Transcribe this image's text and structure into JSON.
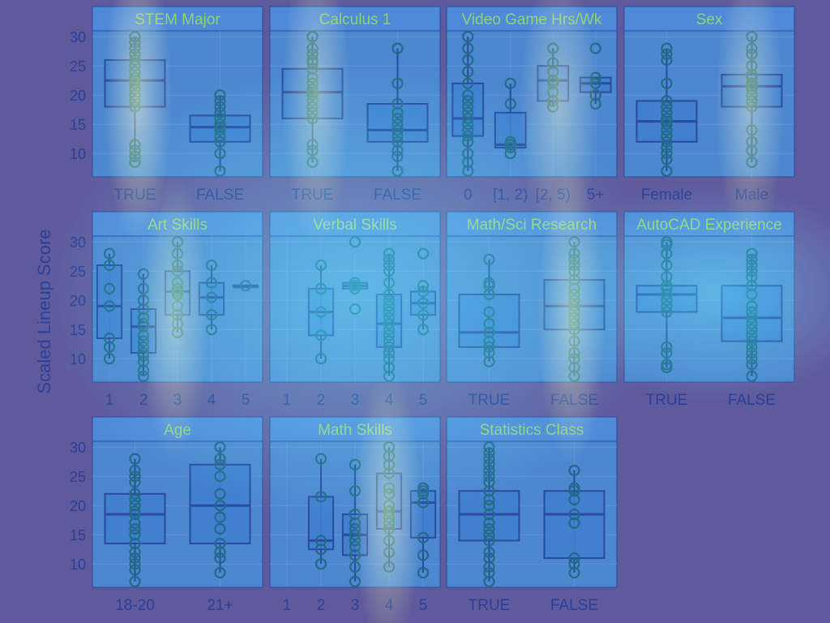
{
  "chart_data": {
    "type": "box",
    "ylabel": "Scaled Lineup Score",
    "ylim": [
      6,
      31
    ],
    "yticks": [
      10,
      15,
      20,
      25,
      30
    ],
    "grid": true,
    "colors": {
      "panel_bg": "#4d87cf",
      "strip_bg": "#4f8ad8",
      "strip_text": "#8fd27a",
      "box_fill": "#3f7fd0",
      "box_stroke": "#2a4a9e",
      "point_stroke": "#226a8a",
      "tick_text": "#2a3f98",
      "grid": "#6a9ce0"
    },
    "panels": [
      {
        "title": "STEM Major",
        "categories": [
          "TRUE",
          "FALSE"
        ],
        "boxes": [
          {
            "q1": 18,
            "median": 22.5,
            "q3": 26,
            "whisker_low": 8.5,
            "whisker_high": 30,
            "points": [
              8.5,
              9.5,
              10.5,
              11.5,
              18,
              19,
              20,
              21,
              22,
              22.5,
              23,
              24,
              25,
              26,
              27,
              28,
              29,
              30
            ]
          },
          {
            "q1": 12,
            "median": 14.5,
            "q3": 16.5,
            "whisker_low": 7,
            "whisker_high": 20,
            "points": [
              7,
              10,
              12,
              13,
              14,
              14.5,
              15,
              16,
              17,
              18,
              19,
              20
            ]
          }
        ]
      },
      {
        "title": "Calculus 1",
        "categories": [
          "TRUE",
          "FALSE"
        ],
        "boxes": [
          {
            "q1": 16,
            "median": 20.5,
            "q3": 24.5,
            "whisker_low": 8.5,
            "whisker_high": 30,
            "points": [
              8.5,
              10.5,
              11.5,
              16,
              17,
              18,
              19,
              20,
              20.5,
              21,
              22,
              23,
              24.5,
              25.5,
              26,
              27,
              28,
              30
            ]
          },
          {
            "q1": 12,
            "median": 14,
            "q3": 18.5,
            "whisker_low": 7,
            "whisker_high": 28,
            "points": [
              7,
              9.5,
              10.5,
              12,
              13,
              14,
              15,
              16,
              17,
              18.5,
              22,
              28
            ]
          }
        ]
      },
      {
        "title": "Video Game Hrs/Wk",
        "categories": [
          "0",
          "[1, 2)",
          "[2, 5)",
          "5+"
        ],
        "boxes": [
          {
            "q1": 13,
            "median": 16,
            "q3": 22,
            "whisker_low": 7,
            "whisker_high": 30,
            "points": [
              7,
              8.5,
              10,
              12,
              13,
              14,
              15,
              16,
              17,
              18,
              19,
              20,
              22,
              24,
              26,
              28,
              30
            ]
          },
          {
            "q1": 11,
            "median": 11.5,
            "q3": 17,
            "whisker_low": 10,
            "whisker_high": 22,
            "points": [
              10,
              11,
              11.5,
              12,
              18.5,
              22
            ]
          },
          {
            "q1": 19,
            "median": 22.5,
            "q3": 25,
            "whisker_low": 18,
            "whisker_high": 28,
            "points": [
              18,
              19,
              20.5,
              22,
              22.5,
              24,
              25.5,
              28
            ]
          },
          {
            "q1": 20.5,
            "median": 22,
            "q3": 23,
            "whisker_low": 18.5,
            "whisker_high": 23,
            "points": [
              18.5,
              20,
              22,
              23,
              28
            ]
          }
        ]
      },
      {
        "title": "Sex",
        "categories": [
          "Female",
          "Male"
        ],
        "boxes": [
          {
            "q1": 12,
            "median": 15.5,
            "q3": 19,
            "whisker_low": 7,
            "whisker_high": 28,
            "points": [
              7,
              9,
              10,
              11,
              12,
              13,
              14,
              15,
              15.5,
              16,
              17,
              18,
              19,
              22,
              26,
              27,
              28
            ]
          },
          {
            "q1": 18,
            "median": 21.5,
            "q3": 23.5,
            "whisker_low": 8.5,
            "whisker_high": 30,
            "points": [
              8.5,
              10.5,
              12,
              14,
              18,
              19,
              20,
              21,
              21.5,
              22,
              23,
              23.5,
              25,
              27,
              28,
              30
            ]
          }
        ]
      },
      {
        "title": "Art Skills",
        "categories": [
          "1",
          "2",
          "3",
          "4",
          "5"
        ],
        "boxes": [
          {
            "q1": 13.5,
            "median": 19,
            "q3": 26,
            "whisker_low": 10,
            "whisker_high": 28,
            "points": [
              10,
              12,
              13.5,
              19,
              22,
              26,
              28
            ]
          },
          {
            "q1": 11,
            "median": 15.5,
            "q3": 18.5,
            "whisker_low": 7,
            "whisker_high": 24.5,
            "points": [
              7,
              8,
              9.5,
              10.5,
              11,
              12,
              13,
              14,
              15.5,
              16,
              17,
              18.5,
              20,
              22,
              24.5
            ]
          },
          {
            "q1": 17.5,
            "median": 21.5,
            "q3": 25,
            "whisker_low": 14.5,
            "whisker_high": 30,
            "points": [
              14.5,
              16,
              17.5,
              19,
              21,
              21.5,
              22,
              23,
              25,
              26,
              28,
              30
            ]
          },
          {
            "q1": 17.5,
            "median": 20.5,
            "q3": 23,
            "whisker_low": 15,
            "whisker_high": 26,
            "points": [
              15,
              17.5,
              20.5,
              23,
              26
            ]
          },
          {
            "q1": 22.5,
            "median": 22.5,
            "q3": 22.5,
            "whisker_low": 22.5,
            "whisker_high": 22.5,
            "points": [
              22.5
            ]
          }
        ]
      },
      {
        "title": "Verbal Skills",
        "categories": [
          "1",
          "2",
          "3",
          "4",
          "5"
        ],
        "boxes": [
          null,
          {
            "q1": 14,
            "median": 18,
            "q3": 22,
            "whisker_low": 10,
            "whisker_high": 26,
            "points": [
              10,
              14,
              18,
              22,
              26
            ]
          },
          {
            "q1": 22,
            "median": 22.5,
            "q3": 23,
            "whisker_low": 22,
            "whisker_high": 23,
            "points": [
              18.5,
              22,
              22.5,
              23,
              30
            ]
          },
          {
            "q1": 12,
            "median": 16,
            "q3": 21,
            "whisker_low": 7,
            "whisker_high": 28,
            "points": [
              7,
              8.5,
              10,
              11,
              12,
              13,
              14,
              15,
              16,
              17,
              18,
              19,
              20,
              21,
              23,
              25,
              26,
              27,
              28
            ]
          },
          {
            "q1": 17.5,
            "median": 19.5,
            "q3": 21.5,
            "whisker_low": 15,
            "whisker_high": 22.5,
            "points": [
              15,
              17.5,
              19.5,
              21.5,
              22.5,
              28
            ]
          }
        ]
      },
      {
        "title": "Math/Sci Research",
        "categories": [
          "TRUE",
          "FALSE"
        ],
        "boxes": [
          {
            "q1": 12,
            "median": 14.5,
            "q3": 21,
            "whisker_low": 9.5,
            "whisker_high": 27,
            "points": [
              9.5,
              11,
              12,
              13,
              14.5,
              16,
              18,
              21,
              22.5,
              23,
              27
            ]
          },
          {
            "q1": 15,
            "median": 19,
            "q3": 23.5,
            "whisker_low": 7,
            "whisker_high": 30,
            "points": [
              7,
              8.5,
              10,
              11,
              13,
              15,
              16,
              17,
              18,
              19,
              20,
              21,
              22,
              23.5,
              25,
              26,
              27,
              28,
              30
            ]
          }
        ]
      },
      {
        "title": "AutoCAD Experience",
        "categories": [
          "TRUE",
          "FALSE"
        ],
        "boxes": [
          {
            "q1": 18,
            "median": 21,
            "q3": 22.5,
            "whisker_low": 8.5,
            "whisker_high": 30,
            "points": [
              8.5,
              9,
              11,
              12,
              18,
              19,
              20,
              21,
              22,
              22.5,
              24,
              26,
              28,
              29.5,
              30
            ]
          },
          {
            "q1": 13,
            "median": 17,
            "q3": 22.5,
            "whisker_low": 7,
            "whisker_high": 28,
            "points": [
              7,
              9,
              10,
              11,
              12,
              13,
              14,
              15,
              16,
              17,
              18,
              19,
              21,
              22.5,
              24,
              25,
              26,
              27,
              28
            ]
          }
        ]
      },
      {
        "title": "Age",
        "categories": [
          "18-20",
          "21+"
        ],
        "boxes": [
          {
            "q1": 13.5,
            "median": 18.5,
            "q3": 22,
            "whisker_low": 7,
            "whisker_high": 28,
            "points": [
              7,
              9,
              10,
              11,
              12,
              13.5,
              15,
              16,
              17,
              18.5,
              19,
              20,
              21,
              22,
              24,
              25,
              26,
              28
            ]
          },
          {
            "q1": 13.5,
            "median": 20,
            "q3": 27,
            "whisker_low": 8.5,
            "whisker_high": 30,
            "points": [
              8.5,
              11,
              12,
              13.5,
              16,
              18,
              20,
              22,
              25,
              27,
              28,
              30
            ]
          }
        ]
      },
      {
        "title": "Math Skills",
        "categories": [
          "1",
          "2",
          "3",
          "4",
          "5"
        ],
        "boxes": [
          null,
          {
            "q1": 12.5,
            "median": 14,
            "q3": 21.5,
            "whisker_low": 10,
            "whisker_high": 28,
            "points": [
              10,
              12.5,
              14,
              21.5,
              28
            ]
          },
          {
            "q1": 11.5,
            "median": 15,
            "q3": 18.5,
            "whisker_low": 7,
            "whisker_high": 27,
            "points": [
              7,
              9.5,
              11.5,
              13,
              14,
              15,
              16,
              17,
              18.5,
              22.5,
              27
            ]
          },
          {
            "q1": 16,
            "median": 19,
            "q3": 25.5,
            "whisker_low": 9.5,
            "whisker_high": 30,
            "points": [
              9.5,
              12,
              14,
              16,
              17,
              18,
              19,
              20,
              22,
              23,
              25.5,
              27,
              28.5,
              30
            ]
          },
          {
            "q1": 14.5,
            "median": 20.5,
            "q3": 22.5,
            "whisker_low": 8.5,
            "whisker_high": 23,
            "points": [
              8.5,
              11.5,
              14.5,
              20.5,
              22,
              22.5,
              23
            ]
          }
        ]
      },
      {
        "title": "Statistics Class",
        "categories": [
          "TRUE",
          "FALSE"
        ],
        "boxes": [
          {
            "q1": 14,
            "median": 18.5,
            "q3": 22.5,
            "whisker_low": 7,
            "whisker_high": 30,
            "points": [
              7,
              8.5,
              9.5,
              11,
              12,
              14,
              15,
              16,
              17,
              18.5,
              20,
              21,
              22.5,
              24,
              25,
              26,
              27,
              28,
              29,
              30
            ]
          },
          {
            "q1": 11,
            "median": 18.5,
            "q3": 22.5,
            "whisker_low": 8.5,
            "whisker_high": 26,
            "points": [
              8.5,
              10,
              11,
              17,
              18.5,
              21,
              22.5,
              23,
              26
            ]
          }
        ]
      }
    ]
  }
}
